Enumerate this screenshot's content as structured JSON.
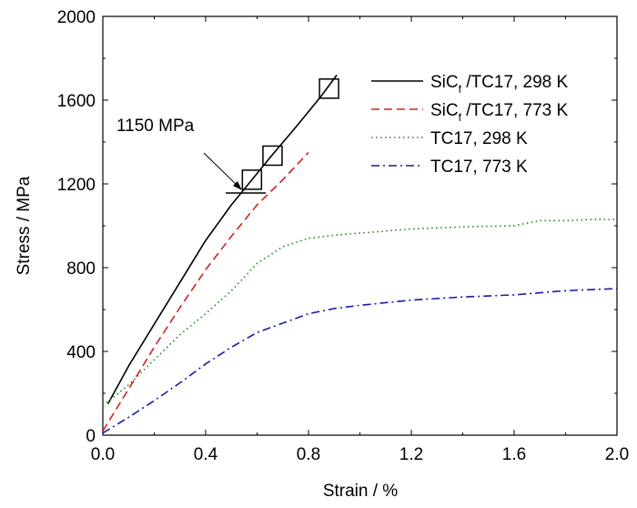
{
  "chart_data": {
    "type": "line",
    "title": "",
    "xlabel": "Strain / %",
    "ylabel": "Stress / MPa",
    "xlim": [
      0.0,
      2.0
    ],
    "ylim": [
      0,
      2000
    ],
    "xticks": [
      0.0,
      0.4,
      0.8,
      1.2,
      1.6,
      2.0
    ],
    "xtick_labels": [
      "0.0",
      "0.4",
      "0.8",
      "1.2",
      "1.6",
      "2.0"
    ],
    "yticks": [
      0,
      400,
      800,
      1200,
      1600,
      2000
    ],
    "ytick_labels": [
      "0",
      "400",
      "800",
      "1200",
      "1600",
      "2000"
    ],
    "grid": false,
    "legend_position": "top-right",
    "series": [
      {
        "name": "SiCf /TC17, 298 K",
        "legend_main": "SiC",
        "legend_sub": "f",
        "legend_rest": " /TC17, 298 K",
        "color": "#000000",
        "style": "solid",
        "x": [
          0.02,
          0.1,
          0.2,
          0.3,
          0.4,
          0.5,
          0.58,
          0.66,
          0.75,
          0.85,
          0.91
        ],
        "y": [
          150,
          330,
          530,
          730,
          930,
          1100,
          1220,
          1340,
          1470,
          1620,
          1720
        ]
      },
      {
        "name": "SiCf /TC17, 773 K",
        "legend_main": "SiC",
        "legend_sub": "f",
        "legend_rest": " /TC17, 773 K",
        "color": "#d42020",
        "style": "dashed",
        "x": [
          0.0,
          0.1,
          0.2,
          0.3,
          0.4,
          0.5,
          0.6,
          0.7,
          0.8
        ],
        "y": [
          20,
          220,
          420,
          610,
          790,
          950,
          1100,
          1220,
          1350
        ]
      },
      {
        "name": "TC17, 298 K",
        "legend_main": "TC17, 298 K",
        "legend_sub": "",
        "legend_rest": "",
        "color": "#1a8a1a",
        "style": "dotted",
        "x": [
          0.0,
          0.1,
          0.2,
          0.3,
          0.4,
          0.5,
          0.6,
          0.7,
          0.8,
          0.9,
          1.0,
          1.2,
          1.4,
          1.6,
          1.7,
          1.8,
          1.9,
          2.0
        ],
        "y": [
          140,
          240,
          360,
          480,
          580,
          690,
          820,
          900,
          940,
          955,
          965,
          985,
          995,
          1000,
          1025,
          1025,
          1030,
          1030
        ]
      },
      {
        "name": "TC17, 773 K",
        "legend_main": "TC17, 773 K",
        "legend_sub": "",
        "legend_rest": "",
        "color": "#1a1aa8",
        "style": "dashdot",
        "x": [
          0.0,
          0.1,
          0.2,
          0.3,
          0.4,
          0.5,
          0.6,
          0.7,
          0.8,
          0.9,
          1.0,
          1.2,
          1.4,
          1.6,
          1.8,
          2.0
        ],
        "y": [
          10,
          85,
          165,
          250,
          340,
          420,
          490,
          535,
          580,
          605,
          620,
          645,
          660,
          670,
          690,
          700
        ]
      }
    ],
    "markers": {
      "series": "SiCf /TC17, 298 K",
      "shape": "square",
      "x": [
        0.58,
        0.66,
        0.88
      ],
      "y": [
        1220,
        1335,
        1655
      ]
    },
    "annotation": {
      "text": "1150 MPa",
      "x": 0.56,
      "y": 1150
    }
  }
}
